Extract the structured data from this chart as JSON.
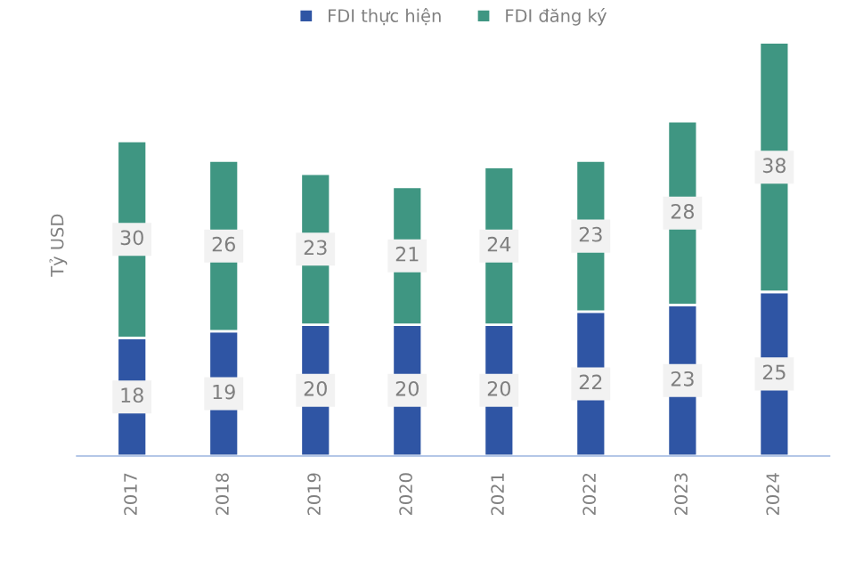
{
  "chart_data": {
    "type": "bar",
    "stacked": true,
    "ylabel": "Tỷ USD",
    "categories": [
      "2017",
      "2018",
      "2019",
      "2020",
      "2021",
      "2022",
      "2023",
      "2024"
    ],
    "series": [
      {
        "name": "FDI thực hiện",
        "color": "#2f55a4",
        "values": [
          18,
          19,
          20,
          20,
          20,
          22,
          23,
          25
        ]
      },
      {
        "name": "FDI đăng ký",
        "color": "#3f9682",
        "values": [
          30,
          26,
          23,
          21,
          24,
          23,
          28,
          38
        ]
      }
    ],
    "data_labels": true,
    "legend": "top",
    "tick_labels": "x",
    "grid": false
  }
}
